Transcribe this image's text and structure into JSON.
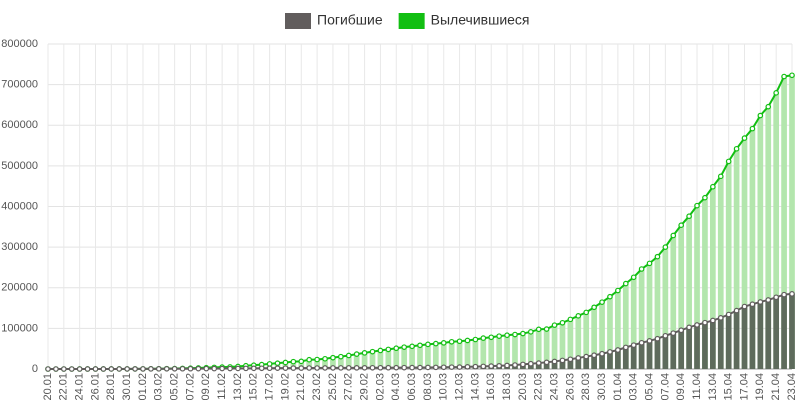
{
  "chart_data": {
    "type": "bar-line",
    "legend": "top",
    "grid": true,
    "categories": [
      "20.01",
      null,
      "22.01",
      null,
      "24.01",
      null,
      "26.01",
      null,
      "28.01",
      null,
      "30.01",
      null,
      "01.02",
      null,
      "03.02",
      null,
      "05.02",
      null,
      "07.02",
      null,
      "09.02",
      null,
      "11.02",
      null,
      "13.02",
      null,
      "15.02",
      null,
      "17.02",
      null,
      "19.02",
      null,
      "21.02",
      null,
      "23.02",
      null,
      "25.02",
      null,
      "27.02",
      null,
      "29.02",
      null,
      "02.03",
      null,
      "04.03",
      null,
      "06.03",
      null,
      "08.03",
      null,
      "10.03",
      null,
      "12.03",
      null,
      "14.03",
      null,
      "16.03",
      null,
      "18.03",
      null,
      "20.03",
      null,
      "22.03",
      null,
      "24.03",
      null,
      "26.03",
      null,
      "28.03",
      null,
      "30.03",
      null,
      "01.04",
      null,
      "03.04",
      null,
      "05.04",
      null,
      "07.04",
      null,
      "09.04",
      null,
      "11.04",
      null,
      "13.04",
      null,
      "15.04",
      null,
      "17.04",
      null,
      "19.04",
      null,
      "21.04",
      null,
      "23.04"
    ],
    "series": [
      {
        "name": "Вылечившиеся",
        "color": "#12bf12",
        "bar_color": "#b3e6ad",
        "values": [
          0,
          0,
          28,
          30,
          36,
          39,
          52,
          61,
          107,
          126,
          143,
          222,
          284,
          472,
          623,
          852,
          1124,
          1487,
          2011,
          2616,
          3244,
          3946,
          4683,
          5150,
          6295,
          8058,
          9395,
          10865,
          12583,
          14352,
          16121,
          18177,
          18890,
          22886,
          23394,
          25227,
          27905,
          30384,
          33277,
          36711,
          39782,
          42716,
          45602,
          48228,
          51170,
          53796,
          55865,
          58358,
          60694,
          62494,
          64404,
          67003,
          68324,
          70251,
          72624,
          76034,
          78088,
          80840,
          83207,
          84854,
          87256,
          91499,
          97704,
          98334,
          108000,
          113770,
          122150,
          130915,
          139415,
          151901,
          164566,
          178034,
          193177,
          210263,
          225796,
          246152,
          260012,
          276515,
          300054,
          328661,
          353975,
          376096,
          402110,
          421722,
          448655,
          474261,
          511019,
          542107,
          568343,
          591696,
          623903,
          645738,
          679819,
          720000,
          723000
        ]
      },
      {
        "name": "Погибшие",
        "color": "#615d5d",
        "bar_color": "#5e6b5c",
        "values": [
          0,
          0,
          17,
          18,
          26,
          42,
          56,
          82,
          131,
          133,
          171,
          213,
          259,
          362,
          426,
          492,
          564,
          634,
          719,
          806,
          906,
          1013,
          1113,
          1118,
          1371,
          1523,
          1666,
          1770,
          1868,
          2007,
          2122,
          2247,
          2251,
          2458,
          2469,
          2629,
          2708,
          2770,
          2814,
          2872,
          2941,
          2996,
          3085,
          3160,
          3254,
          3348,
          3460,
          3558,
          3802,
          3988,
          4262,
          4615,
          4720,
          5404,
          5819,
          6440,
          7126,
          7905,
          8733,
          9867,
          11299,
          12973,
          14623,
          16497,
          18615,
          21181,
          23970,
          27198,
          30652,
          33925,
          37582,
          42107,
          46809,
          53190,
          58787,
          64606,
          69374,
          74565,
          81865,
          88338,
          95455,
          102525,
          108503,
          114090,
          119482,
          125984,
          134177,
          143800,
          153822,
          159510,
          165044,
          169986,
          176583,
          183027,
          185000
        ]
      }
    ],
    "ylim": [
      0,
      800000
    ],
    "yticks": [
      0,
      100000,
      200000,
      300000,
      400000,
      500000,
      600000,
      700000,
      800000
    ]
  }
}
